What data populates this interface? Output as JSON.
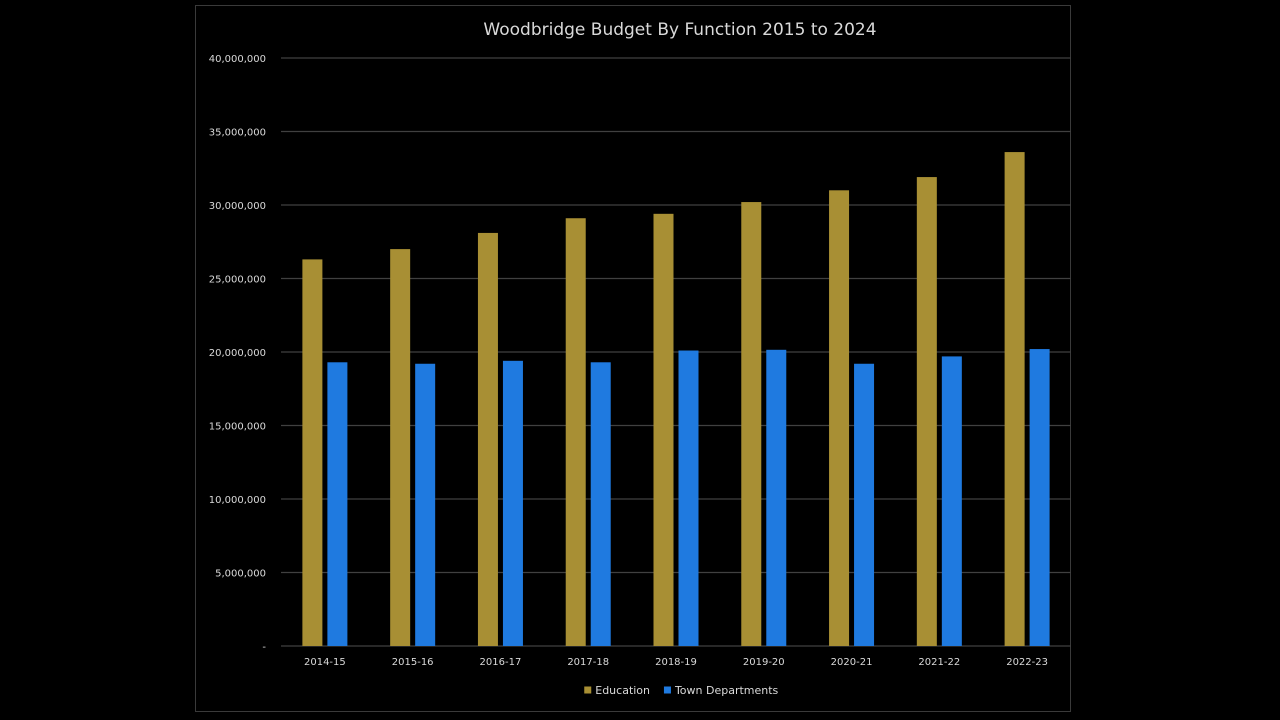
{
  "chart_data": {
    "type": "bar",
    "title": "Woodbridge Budget By Function 2015 to 2024",
    "xlabel": "",
    "ylabel": "",
    "categories": [
      "2014-15",
      "2015-16",
      "2016-17",
      "2017-18",
      "2018-19",
      "2019-20",
      "2020-21",
      "2021-22",
      "2022-23"
    ],
    "series": [
      {
        "name": "Education",
        "color": "#a88f34",
        "values": [
          26300000,
          27000000,
          28100000,
          29100000,
          29400000,
          30200000,
          31000000,
          31900000,
          33600000
        ]
      },
      {
        "name": "Town Departments",
        "color": "#1f7ae0",
        "values": [
          19300000,
          19200000,
          19400000,
          19300000,
          20100000,
          20150000,
          19200000,
          19700000,
          20200000
        ]
      }
    ],
    "ylim": [
      0,
      40000000
    ],
    "yticks": [
      "-",
      "5,000,000",
      "10,000,000",
      "15,000,000",
      "20,000,000",
      "25,000,000",
      "30,000,000",
      "35,000,000",
      "40,000,000"
    ],
    "grid": true,
    "legend_position": "bottom",
    "colors": {
      "background": "#000000",
      "gridline": "#404040",
      "text": "#d9d9d9"
    }
  }
}
